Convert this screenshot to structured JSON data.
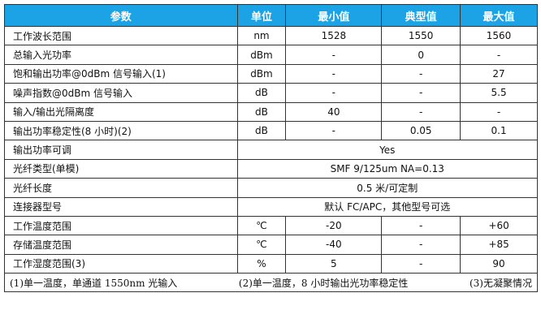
{
  "header": [
    "参数",
    "单位",
    "最小值",
    "典型值",
    "最大值"
  ],
  "rows": [
    [
      "工作波长范围",
      "nm",
      "1528",
      "1550",
      "1560"
    ],
    [
      "总输入光功率",
      "dBm",
      "-",
      "0",
      "-"
    ],
    [
      "饱和输出功率@0dBm 信号输入(1)",
      "dBm",
      "-",
      "-",
      "27"
    ],
    [
      "噪声指数@0dBm 信号输入",
      "dB",
      "-",
      "-",
      "5.5"
    ],
    [
      "输入/输出光隔离度",
      "dB",
      "40",
      "-",
      "-"
    ],
    [
      "输出功率稳定性(8 小时)(2)",
      "dB",
      "-",
      "0.05",
      "0.1"
    ]
  ],
  "span_rows": [
    [
      "输出功率可调",
      "Yes"
    ],
    [
      "光纤类型(单模)",
      "SMF 9/125um NA=0.13"
    ],
    [
      "光纤长度",
      "0.5 米/可定制"
    ],
    [
      "连接器型号",
      "默认 FC/APC，其他型号可选"
    ]
  ],
  "rows2": [
    [
      "工作温度范围",
      "℃",
      "-20",
      "-",
      "+60"
    ],
    [
      "存储温度范围",
      "℃",
      "-40",
      "-",
      "+85"
    ],
    [
      "工作湿度范围(3)",
      "%",
      "5",
      "-",
      "90"
    ]
  ],
  "notes": [
    "(1)单一温度，单通道 1550nm 光输入",
    "(2)单一温度，8 小时输出光功率稳定性",
    "(3)无凝聚情况"
  ],
  "header_color": "#1ba3e6"
}
